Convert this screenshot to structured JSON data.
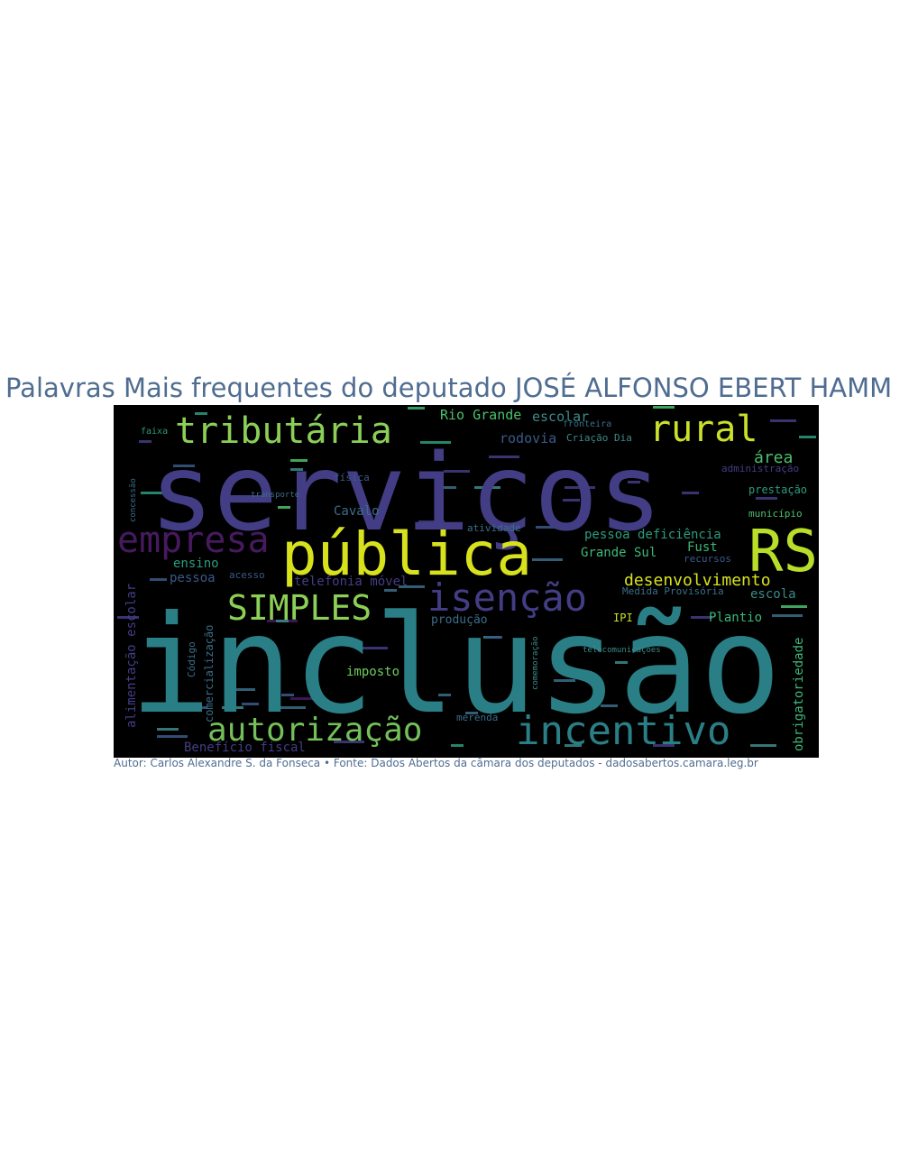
{
  "title": "Palavras Mais frequentes do deputado JOSÉ ALFONSO EBERT HAMM",
  "footer": "Autor: Carlos Alexandre S. da Fonseca • Fonte: Dados Abertos da câmara dos deputados - dadosabertos.camara.leg.br",
  "colors": {
    "title": "#4f6d91",
    "background": "#000000",
    "indigo": "#433d85",
    "teal": "#2a7f86",
    "darkpurple": "#471a60",
    "yellow": "#d7e21d",
    "green": "#73c05a",
    "seagreen": "#2b9c7e",
    "blue": "#3a5a8a"
  },
  "words": [
    {
      "text": "serviços",
      "color": "#433d85",
      "size": 118,
      "vertical": false
    },
    {
      "text": "inclusão",
      "color": "#2a7f86",
      "size": 150,
      "vertical": false
    },
    {
      "text": "pública",
      "color": "#d7e21d",
      "size": 66,
      "vertical": false
    },
    {
      "text": "RS",
      "color": "#b8de29",
      "size": 64,
      "vertical": false
    },
    {
      "text": "empresa",
      "color": "#471a60",
      "size": 40,
      "vertical": false
    },
    {
      "text": "tributária",
      "color": "#8bcf57",
      "size": 40,
      "vertical": false
    },
    {
      "text": "rural",
      "color": "#cbe02a",
      "size": 40,
      "vertical": false
    },
    {
      "text": "isenção",
      "color": "#433d85",
      "size": 42,
      "vertical": false
    },
    {
      "text": "SIMPLES",
      "color": "#8bcf57",
      "size": 38,
      "vertical": false
    },
    {
      "text": "incentivo",
      "color": "#2a7f86",
      "size": 44,
      "vertical": false
    },
    {
      "text": "autorização",
      "color": "#73c05a",
      "size": 36,
      "vertical": false
    },
    {
      "text": "desenvolvimento",
      "color": "#d7e21d",
      "size": 18,
      "vertical": false
    },
    {
      "text": "Rio Grande",
      "color": "#4ac16d",
      "size": 15,
      "vertical": false
    },
    {
      "text": "escolar",
      "color": "#3b8b8a",
      "size": 15,
      "vertical": false
    },
    {
      "text": "rodovia",
      "color": "#3a5a8a",
      "size": 15,
      "vertical": false
    },
    {
      "text": "área",
      "color": "#4ac16d",
      "size": 18,
      "vertical": false
    },
    {
      "text": "Cavalo",
      "color": "#3b6e8a",
      "size": 14,
      "vertical": false
    },
    {
      "text": "pessoa deficiência",
      "color": "#2b9c7e",
      "size": 14,
      "vertical": false
    },
    {
      "text": "Grande Sul",
      "color": "#3cb87a",
      "size": 14,
      "vertical": false
    },
    {
      "text": "Fust",
      "color": "#3cb87a",
      "size": 14,
      "vertical": false
    },
    {
      "text": "ensino",
      "color": "#2b9c7e",
      "size": 14,
      "vertical": false
    },
    {
      "text": "pessoa",
      "color": "#3a5a8a",
      "size": 14,
      "vertical": false
    },
    {
      "text": "telefonia móvel",
      "color": "#433d85",
      "size": 14,
      "vertical": false
    },
    {
      "text": "escola",
      "color": "#3b8b8a",
      "size": 14,
      "vertical": false
    },
    {
      "text": "Plantio",
      "color": "#3cb87a",
      "size": 14,
      "vertical": false
    },
    {
      "text": "produção",
      "color": "#3b6e8a",
      "size": 13,
      "vertical": false
    },
    {
      "text": "imposto",
      "color": "#6ece58",
      "size": 14,
      "vertical": false
    },
    {
      "text": "Benefício fiscal",
      "color": "#433d85",
      "size": 14,
      "vertical": false
    },
    {
      "text": "merenda",
      "color": "#3b6e8a",
      "size": 11,
      "vertical": false
    },
    {
      "text": "prestação",
      "color": "#2b9c7e",
      "size": 12,
      "vertical": false
    },
    {
      "text": "administração",
      "color": "#433d85",
      "size": 11,
      "vertical": false
    },
    {
      "text": "município",
      "color": "#4ac16d",
      "size": 11,
      "vertical": false
    },
    {
      "text": "recursos",
      "color": "#3a5a8a",
      "size": 11,
      "vertical": false
    },
    {
      "text": "Medida Provisória",
      "color": "#3b6e8a",
      "size": 11,
      "vertical": false
    },
    {
      "text": "IPI",
      "color": "#cbe02a",
      "size": 12,
      "vertical": false
    },
    {
      "text": "acesso",
      "color": "#3a5a8a",
      "size": 11,
      "vertical": false
    },
    {
      "text": "física",
      "color": "#3a5a8a",
      "size": 11,
      "vertical": false
    },
    {
      "text": "atividade",
      "color": "#3b6e8a",
      "size": 11,
      "vertical": false
    },
    {
      "text": "transporte",
      "color": "#3b6e8a",
      "size": 9,
      "vertical": false
    },
    {
      "text": "Criação Dia",
      "color": "#3b8b8a",
      "size": 11,
      "vertical": false
    },
    {
      "text": "fronteira",
      "color": "#3b6e8a",
      "size": 10,
      "vertical": false
    },
    {
      "text": "faixa",
      "color": "#2b9c7e",
      "size": 10,
      "vertical": false
    },
    {
      "text": "telecomunicações",
      "color": "#3b8b8a",
      "size": 9,
      "vertical": false
    },
    {
      "text": "obrigatoriedade",
      "color": "#3cb87a",
      "size": 14,
      "vertical": true
    },
    {
      "text": "alimentação escolar",
      "color": "#433d85",
      "size": 14,
      "vertical": true
    },
    {
      "text": "comercialização",
      "color": "#3b6e8a",
      "size": 12,
      "vertical": true
    },
    {
      "text": "Código",
      "color": "#3b6e8a",
      "size": 11,
      "vertical": true
    },
    {
      "text": "concessão",
      "color": "#3b6e8a",
      "size": 9,
      "vertical": true
    },
    {
      "text": "comemoração",
      "color": "#3b8b8a",
      "size": 9,
      "vertical": true
    }
  ]
}
